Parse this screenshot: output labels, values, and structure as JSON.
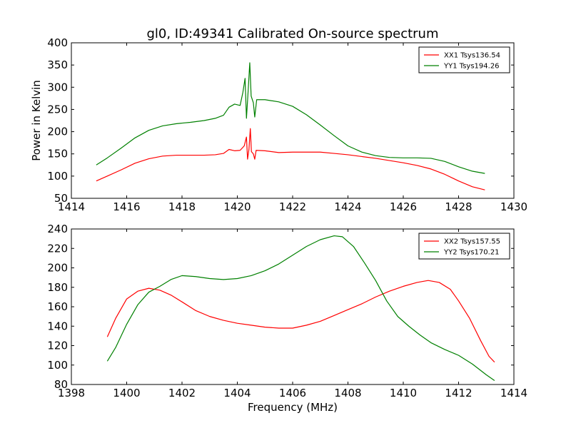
{
  "chart_data": [
    {
      "type": "line",
      "title": "gl0, ID:49341 Calibrated On-source spectrum",
      "xlabel": "",
      "ylabel": "Power in Kelvin",
      "xlim": [
        1414,
        1430
      ],
      "ylim": [
        50,
        400
      ],
      "xticks": [
        1414,
        1416,
        1418,
        1420,
        1422,
        1424,
        1426,
        1428,
        1430
      ],
      "yticks": [
        50,
        100,
        150,
        200,
        250,
        300,
        350,
        400
      ],
      "grid": false,
      "legend_position": "top-right",
      "series": [
        {
          "name": "XX1 Tsys136.54",
          "color": "#ff0000",
          "points": [
            [
              1414.9,
              89
            ],
            [
              1415.3,
              100
            ],
            [
              1415.8,
              114
            ],
            [
              1416.3,
              129
            ],
            [
              1416.8,
              139
            ],
            [
              1417.3,
              145
            ],
            [
              1417.8,
              147
            ],
            [
              1418.3,
              147
            ],
            [
              1418.8,
              147
            ],
            [
              1419.2,
              148
            ],
            [
              1419.5,
              151
            ],
            [
              1419.7,
              160
            ],
            [
              1419.9,
              157
            ],
            [
              1420.1,
              158
            ],
            [
              1420.25,
              168
            ],
            [
              1420.33,
              188
            ],
            [
              1420.37,
              138
            ],
            [
              1420.42,
              160
            ],
            [
              1420.47,
              207
            ],
            [
              1420.51,
              155
            ],
            [
              1420.58,
              150
            ],
            [
              1420.63,
              138
            ],
            [
              1420.68,
              158
            ],
            [
              1421.0,
              157
            ],
            [
              1421.5,
              153
            ],
            [
              1422.0,
              154
            ],
            [
              1422.5,
              154
            ],
            [
              1423.0,
              154
            ],
            [
              1423.5,
              151
            ],
            [
              1424.0,
              148
            ],
            [
              1424.5,
              144
            ],
            [
              1425.0,
              140
            ],
            [
              1425.5,
              135
            ],
            [
              1426.0,
              130
            ],
            [
              1426.5,
              124
            ],
            [
              1427.0,
              116
            ],
            [
              1427.5,
              104
            ],
            [
              1428.0,
              89
            ],
            [
              1428.5,
              76
            ],
            [
              1428.95,
              69
            ]
          ]
        },
        {
          "name": "YY1 Tsys194.26",
          "color": "#008000",
          "points": [
            [
              1414.9,
              125
            ],
            [
              1415.3,
              141
            ],
            [
              1415.8,
              163
            ],
            [
              1416.3,
              186
            ],
            [
              1416.8,
              203
            ],
            [
              1417.3,
              213
            ],
            [
              1417.8,
              218
            ],
            [
              1418.3,
              221
            ],
            [
              1418.8,
              225
            ],
            [
              1419.2,
              230
            ],
            [
              1419.5,
              237
            ],
            [
              1419.7,
              255
            ],
            [
              1419.9,
              262
            ],
            [
              1420.1,
              259
            ],
            [
              1420.2,
              288
            ],
            [
              1420.28,
              320
            ],
            [
              1420.33,
              230
            ],
            [
              1420.38,
              280
            ],
            [
              1420.45,
              355
            ],
            [
              1420.5,
              280
            ],
            [
              1420.58,
              265
            ],
            [
              1420.63,
              233
            ],
            [
              1420.7,
              272
            ],
            [
              1421.0,
              272
            ],
            [
              1421.5,
              267
            ],
            [
              1422.0,
              257
            ],
            [
              1422.5,
              238
            ],
            [
              1423.0,
              215
            ],
            [
              1423.5,
              191
            ],
            [
              1424.0,
              168
            ],
            [
              1424.5,
              154
            ],
            [
              1425.0,
              146
            ],
            [
              1425.5,
              142
            ],
            [
              1426.0,
              141
            ],
            [
              1426.5,
              141
            ],
            [
              1427.0,
              140
            ],
            [
              1427.5,
              133
            ],
            [
              1428.0,
              121
            ],
            [
              1428.5,
              111
            ],
            [
              1428.95,
              106
            ]
          ]
        }
      ]
    },
    {
      "type": "line",
      "title": "",
      "xlabel": "Frequency (MHz)",
      "ylabel": "",
      "xlim": [
        1398,
        1414
      ],
      "ylim": [
        80,
        240
      ],
      "xticks": [
        1398,
        1400,
        1402,
        1404,
        1406,
        1408,
        1410,
        1412,
        1414
      ],
      "yticks": [
        80,
        100,
        120,
        140,
        160,
        180,
        200,
        220,
        240
      ],
      "grid": false,
      "legend_position": "top-right",
      "series": [
        {
          "name": "XX2 Tsys157.55",
          "color": "#ff0000",
          "points": [
            [
              1399.3,
              129
            ],
            [
              1399.6,
              148
            ],
            [
              1400.0,
              168
            ],
            [
              1400.4,
              176
            ],
            [
              1400.8,
              179
            ],
            [
              1401.2,
              177
            ],
            [
              1401.6,
              172
            ],
            [
              1402.0,
              165
            ],
            [
              1402.5,
              156
            ],
            [
              1403.0,
              150
            ],
            [
              1403.5,
              146
            ],
            [
              1404.0,
              143
            ],
            [
              1404.5,
              141
            ],
            [
              1405.0,
              139
            ],
            [
              1405.5,
              138
            ],
            [
              1406.0,
              138
            ],
            [
              1406.5,
              141
            ],
            [
              1407.0,
              145
            ],
            [
              1407.5,
              151
            ],
            [
              1408.0,
              157
            ],
            [
              1408.5,
              163
            ],
            [
              1409.0,
              170
            ],
            [
              1409.5,
              176
            ],
            [
              1410.0,
              181
            ],
            [
              1410.5,
              185
            ],
            [
              1410.9,
              187
            ],
            [
              1411.3,
              185
            ],
            [
              1411.7,
              178
            ],
            [
              1412.0,
              166
            ],
            [
              1412.4,
              148
            ],
            [
              1412.8,
              125
            ],
            [
              1413.1,
              109
            ],
            [
              1413.3,
              103
            ]
          ]
        },
        {
          "name": "YY2 Tsys170.21",
          "color": "#008000",
          "points": [
            [
              1399.3,
              104
            ],
            [
              1399.6,
              118
            ],
            [
              1400.0,
              142
            ],
            [
              1400.4,
              162
            ],
            [
              1400.8,
              175
            ],
            [
              1401.2,
              181
            ],
            [
              1401.6,
              188
            ],
            [
              1402.0,
              192
            ],
            [
              1402.5,
              191
            ],
            [
              1403.0,
              189
            ],
            [
              1403.5,
              188
            ],
            [
              1404.0,
              189
            ],
            [
              1404.5,
              192
            ],
            [
              1405.0,
              197
            ],
            [
              1405.5,
              204
            ],
            [
              1406.0,
              213
            ],
            [
              1406.5,
              222
            ],
            [
              1407.0,
              229
            ],
            [
              1407.5,
              233
            ],
            [
              1407.8,
              232
            ],
            [
              1408.2,
              222
            ],
            [
              1408.6,
              205
            ],
            [
              1409.0,
              187
            ],
            [
              1409.4,
              166
            ],
            [
              1409.8,
              150
            ],
            [
              1410.2,
              140
            ],
            [
              1410.6,
              131
            ],
            [
              1411.0,
              123
            ],
            [
              1411.5,
              116
            ],
            [
              1412.0,
              110
            ],
            [
              1412.5,
              101
            ],
            [
              1413.0,
              90
            ],
            [
              1413.3,
              84
            ]
          ]
        }
      ]
    }
  ]
}
